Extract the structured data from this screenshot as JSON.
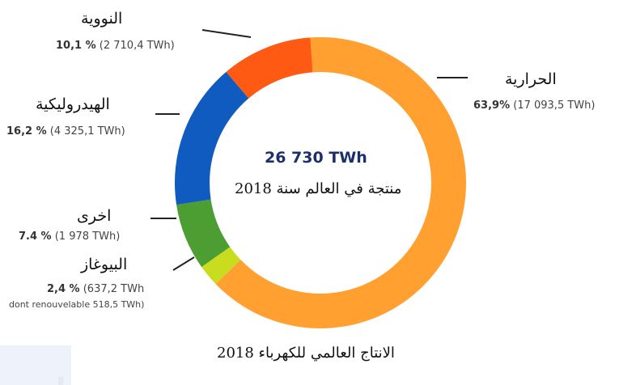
{
  "chart_data": {
    "type": "pie",
    "style": "donut",
    "title": "الانتاج العالمي للكهرباء 2018",
    "center": {
      "total": "26 730 TWh",
      "caption": "منتجة في العالم سنة 2018"
    },
    "slices": [
      {
        "key": "thermal",
        "label": "الحرارية",
        "percent": 63.9,
        "percent_text": "63,9%",
        "twh_text": "(17 093,5 TWh)",
        "color": "#ffa031"
      },
      {
        "key": "biogas",
        "label": "البيوغاز",
        "percent": 2.4,
        "percent_text": "2,4 %",
        "twh_text": "(637,2 TWh",
        "note": "dont renouvelable 518,5 TWh)",
        "color": "#c8dd1e"
      },
      {
        "key": "other",
        "label": "اخرى",
        "percent": 7.4,
        "percent_text": "7.4 %",
        "twh_text": "(1 978 TWh)",
        "color": "#4c9e32"
      },
      {
        "key": "hydro",
        "label": "الهيدروليكية",
        "percent": 16.2,
        "percent_text": "16,2 %",
        "twh_text": "(4 325,1 TWh)",
        "color": "#0f5bbf"
      },
      {
        "key": "nuclear",
        "label": "النووية",
        "percent": 10.1,
        "percent_text": "10,1 %",
        "twh_text": "(2 710,4 TWh)",
        "color": "#ff5a14"
      }
    ],
    "legend": "none"
  }
}
